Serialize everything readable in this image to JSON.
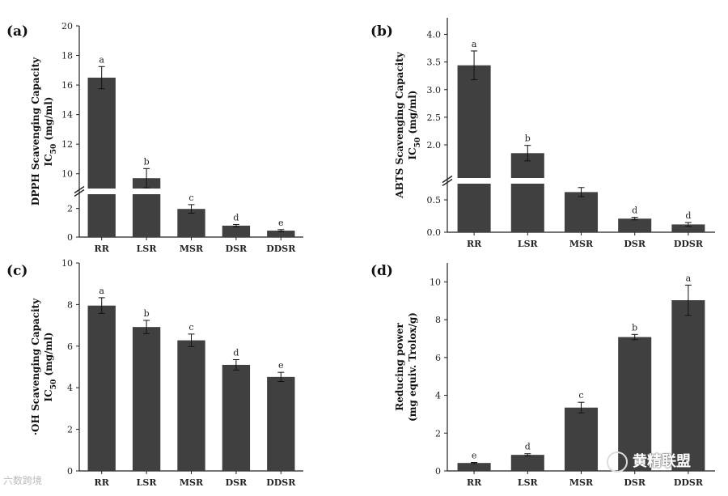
{
  "figure": {
    "bar_color": "#404040",
    "axis_color": "#222222"
  },
  "chart_data": [
    {
      "id": "a",
      "panel_label": "(a)",
      "type": "bar",
      "categories": [
        "RR",
        "LSR",
        "MSR",
        "DSR",
        "DDSR"
      ],
      "values": [
        16.5,
        9.7,
        1.97,
        0.8,
        0.45
      ],
      "errors": [
        0.75,
        0.65,
        0.3,
        0.08,
        0.07
      ],
      "significance": [
        "a",
        "b",
        "c",
        "d",
        "e"
      ],
      "ylabel_line1": "DPPH  Scavenging Capacity",
      "ylabel_line2_prefix": "IC",
      "ylabel_sub": "50",
      "ylabel_line2_suffix": " (mg/ml)",
      "broken_axis": true,
      "lower_range": [
        0,
        3
      ],
      "upper_range": [
        9,
        20
      ],
      "lower_ticks": [
        0,
        2
      ],
      "upper_ticks": [
        10,
        12,
        14,
        16,
        18,
        20
      ],
      "tick_labels_lower": [
        "0",
        "2"
      ],
      "tick_labels_upper": [
        "10",
        "12",
        "14",
        "16",
        "18",
        "20"
      ]
    },
    {
      "id": "b",
      "panel_label": "(b)",
      "type": "bar",
      "categories": [
        "RR",
        "LSR",
        "MSR",
        "DSR",
        "DDSR"
      ],
      "values": [
        3.44,
        1.85,
        0.62,
        0.21,
        0.12
      ],
      "errors": [
        0.26,
        0.14,
        0.07,
        0.02,
        0.03
      ],
      "significance": [
        "a",
        "b",
        "c",
        "d",
        "d"
      ],
      "ylabel_line1": "ABTS  Scavenging Capacity",
      "ylabel_line2_prefix": "IC",
      "ylabel_sub": "50",
      "ylabel_line2_suffix": " (mg/ml)",
      "broken_axis": true,
      "lower_range": [
        0,
        0.75
      ],
      "upper_range": [
        1.4,
        4.3
      ],
      "lower_ticks": [
        0,
        0.5
      ],
      "upper_ticks": [
        2.0,
        2.5,
        3.0,
        3.5,
        4.0
      ],
      "tick_labels_lower": [
        "0.0",
        "0.5"
      ],
      "tick_labels_upper": [
        "2.0",
        "2.5",
        "3.0",
        "3.5",
        "4.0"
      ]
    },
    {
      "id": "c",
      "panel_label": "(c)",
      "type": "bar",
      "categories": [
        "RR",
        "LSR",
        "MSR",
        "DSR",
        "DDSR"
      ],
      "values": [
        7.95,
        6.92,
        6.28,
        5.1,
        4.52
      ],
      "errors": [
        0.38,
        0.32,
        0.3,
        0.25,
        0.22
      ],
      "significance": [
        "a",
        "b",
        "c",
        "d",
        "e"
      ],
      "ylabel_line1": "·OH Scavenging Capacity",
      "ylabel_line2_prefix": "IC",
      "ylabel_sub": "50",
      "ylabel_line2_suffix": " (mg/ml)",
      "broken_axis": false,
      "ylim": [
        0,
        10
      ],
      "ticks": [
        0,
        2,
        4,
        6,
        8,
        10
      ],
      "tick_labels": [
        "0",
        "2",
        "4",
        "6",
        "8",
        "10"
      ]
    },
    {
      "id": "d",
      "panel_label": "(d)",
      "type": "bar",
      "categories": [
        "RR",
        "LSR",
        "MSR",
        "DSR",
        "DDSR"
      ],
      "values": [
        0.42,
        0.85,
        3.35,
        7.08,
        9.03
      ],
      "errors": [
        0.03,
        0.06,
        0.28,
        0.14,
        0.8
      ],
      "significance": [
        "e",
        "d",
        "c",
        "b",
        "a"
      ],
      "ylabel_line1": "Reducing power",
      "ylabel_line2_prefix": "(mg equiv. Trolox/g)",
      "ylabel_sub": "",
      "ylabel_line2_suffix": "",
      "broken_axis": false,
      "ylim": [
        0,
        11
      ],
      "ticks": [
        0,
        2,
        4,
        6,
        8,
        10
      ],
      "tick_labels": [
        "0",
        "2",
        "4",
        "6",
        "8",
        "10"
      ]
    }
  ],
  "watermarks": {
    "left": "六数跨境",
    "right": "黄精联盟"
  }
}
